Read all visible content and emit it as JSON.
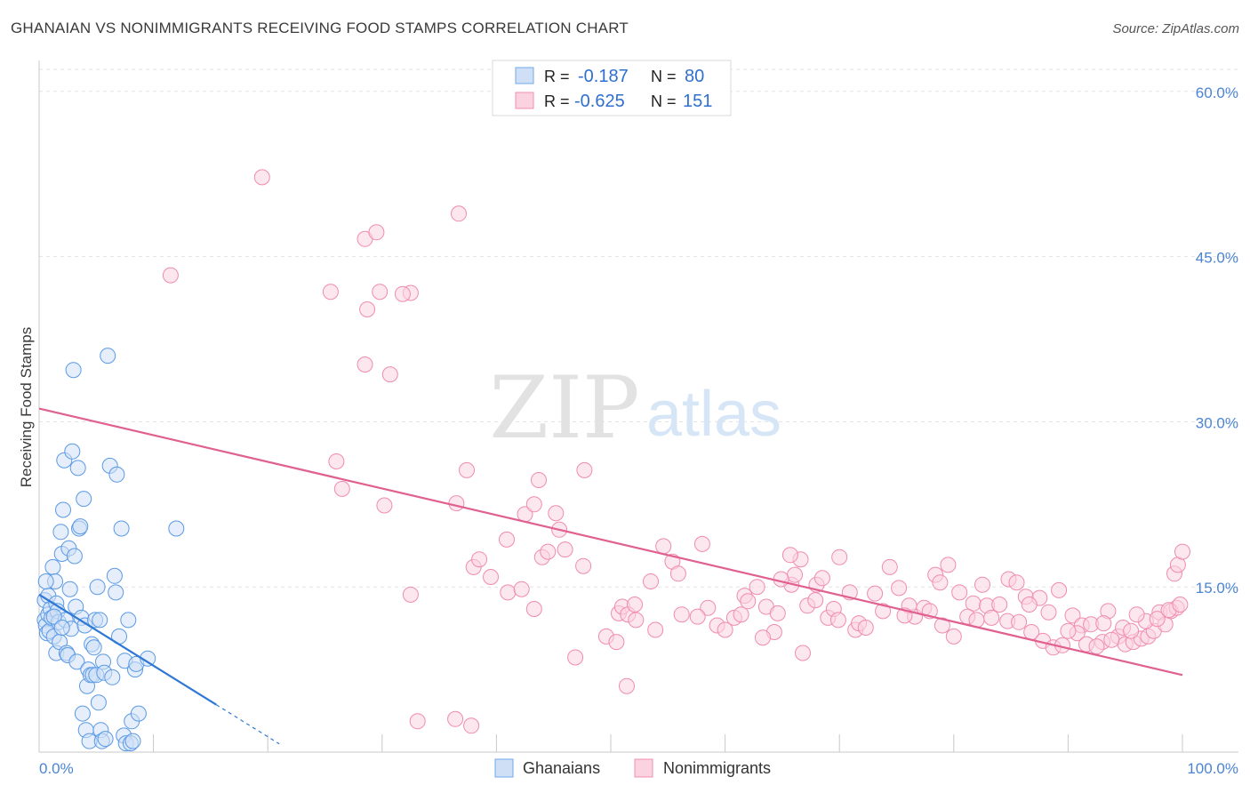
{
  "title": "GHANAIAN VS NONIMMIGRANTS RECEIVING FOOD STAMPS CORRELATION CHART",
  "source": "Source: ZipAtlas.com",
  "watermark": {
    "zip": "ZIP",
    "atlas": "atlas"
  },
  "colors": {
    "blue": "#6fa8e8",
    "blue_line": "#2f78d4",
    "pink": "#f28db0",
    "pink_line": "#e0608f",
    "tick_text": "#4a84d4"
  },
  "chart_data": {
    "type": "scatter",
    "ylabel": "Receiving Food Stamps",
    "x_tick_labels": [
      "0.0%",
      "100.0%"
    ],
    "y_tick_labels": [
      "15.0%",
      "30.0%",
      "45.0%",
      "60.0%"
    ],
    "y_ticks": [
      15,
      30,
      45,
      60
    ],
    "xlim": [
      0,
      100
    ],
    "ylim": [
      0,
      62
    ],
    "grid": true,
    "legend_top": [
      {
        "r_label": "R =",
        "r_value": "-0.187",
        "n_label": "N =",
        "n_value": "80"
      },
      {
        "r_label": "R =",
        "r_value": "-0.625",
        "n_label": "N =",
        "n_value": "151"
      }
    ],
    "series": [
      {
        "name": "Ghanaians",
        "color": "#6fa8e8",
        "trend": {
          "x0": 0,
          "y0": 14.3,
          "x1": 15.5,
          "y1": 4.3,
          "dashed_to_x": 21
        },
        "points": [
          [
            0.5,
            13.8
          ],
          [
            0.5,
            12.0
          ],
          [
            0.6,
            11.5
          ],
          [
            0.7,
            10.8
          ],
          [
            0.8,
            12.5
          ],
          [
            0.8,
            14.2
          ],
          [
            0.9,
            11.0
          ],
          [
            1.0,
            13.0
          ],
          [
            1.1,
            12.2
          ],
          [
            1.2,
            16.8
          ],
          [
            1.3,
            10.5
          ],
          [
            1.4,
            15.5
          ],
          [
            1.5,
            9.0
          ],
          [
            1.5,
            13.5
          ],
          [
            1.6,
            12.8
          ],
          [
            1.7,
            11.8
          ],
          [
            1.8,
            10.0
          ],
          [
            1.9,
            20.0
          ],
          [
            2.0,
            18.0
          ],
          [
            2.1,
            22.0
          ],
          [
            2.2,
            26.5
          ],
          [
            2.3,
            12.0
          ],
          [
            2.4,
            9.0
          ],
          [
            2.5,
            8.8
          ],
          [
            2.6,
            18.5
          ],
          [
            2.7,
            14.8
          ],
          [
            2.8,
            11.2
          ],
          [
            2.9,
            27.3
          ],
          [
            3.0,
            34.7
          ],
          [
            3.1,
            17.8
          ],
          [
            3.2,
            13.2
          ],
          [
            3.3,
            8.2
          ],
          [
            3.4,
            25.8
          ],
          [
            3.5,
            20.3
          ],
          [
            3.6,
            20.5
          ],
          [
            3.7,
            12.2
          ],
          [
            3.8,
            3.5
          ],
          [
            3.9,
            23.0
          ],
          [
            4.0,
            11.5
          ],
          [
            4.1,
            2.0
          ],
          [
            4.2,
            6.0
          ],
          [
            4.3,
            7.5
          ],
          [
            4.4,
            1.0
          ],
          [
            4.5,
            7.0
          ],
          [
            4.6,
            9.8
          ],
          [
            4.7,
            7.0
          ],
          [
            4.8,
            9.5
          ],
          [
            4.9,
            12.0
          ],
          [
            5.0,
            7.0
          ],
          [
            5.1,
            15.0
          ],
          [
            5.2,
            4.5
          ],
          [
            5.3,
            12.0
          ],
          [
            5.4,
            2.0
          ],
          [
            5.5,
            1.0
          ],
          [
            5.6,
            8.2
          ],
          [
            5.7,
            7.2
          ],
          [
            5.8,
            1.2
          ],
          [
            6.0,
            36.0
          ],
          [
            6.2,
            26.0
          ],
          [
            6.4,
            6.8
          ],
          [
            6.6,
            16.0
          ],
          [
            6.7,
            14.5
          ],
          [
            6.8,
            25.2
          ],
          [
            7.0,
            10.5
          ],
          [
            7.2,
            20.3
          ],
          [
            7.4,
            1.5
          ],
          [
            7.5,
            8.3
          ],
          [
            7.6,
            0.8
          ],
          [
            7.8,
            12.0
          ],
          [
            8.0,
            0.8
          ],
          [
            8.1,
            2.8
          ],
          [
            8.2,
            1.0
          ],
          [
            8.4,
            7.5
          ],
          [
            8.5,
            8.0
          ],
          [
            8.7,
            3.5
          ],
          [
            9.5,
            8.5
          ],
          [
            0.6,
            15.5
          ],
          [
            1.3,
            12.3
          ],
          [
            2.0,
            11.3
          ],
          [
            12.0,
            20.3
          ]
        ]
      },
      {
        "name": "Nonimmigrants",
        "color": "#f28db0",
        "trend": {
          "x0": 0,
          "y0": 31.2,
          "x1": 100,
          "y1": 7.0
        },
        "points": [
          [
            19.5,
            52.2
          ],
          [
            36.7,
            48.9
          ],
          [
            28.5,
            46.6
          ],
          [
            29.5,
            47.2
          ],
          [
            11.5,
            43.3
          ],
          [
            25.5,
            41.8
          ],
          [
            29.8,
            41.8
          ],
          [
            32.5,
            41.7
          ],
          [
            31.8,
            41.6
          ],
          [
            28.7,
            40.2
          ],
          [
            28.5,
            35.2
          ],
          [
            30.7,
            34.3
          ],
          [
            26.0,
            26.4
          ],
          [
            26.5,
            23.9
          ],
          [
            30.2,
            22.4
          ],
          [
            37.4,
            25.6
          ],
          [
            47.7,
            25.6
          ],
          [
            43.7,
            24.7
          ],
          [
            42.5,
            21.6
          ],
          [
            43.3,
            22.5
          ],
          [
            45.2,
            21.7
          ],
          [
            45.5,
            20.2
          ],
          [
            44.0,
            17.7
          ],
          [
            46.0,
            18.4
          ],
          [
            40.9,
            19.3
          ],
          [
            36.5,
            22.6
          ],
          [
            32.5,
            14.3
          ],
          [
            38.0,
            16.8
          ],
          [
            38.5,
            17.5
          ],
          [
            39.5,
            15.9
          ],
          [
            41.0,
            14.5
          ],
          [
            42.2,
            14.8
          ],
          [
            44.5,
            18.2
          ],
          [
            46.9,
            8.6
          ],
          [
            47.6,
            16.9
          ],
          [
            49.6,
            10.5
          ],
          [
            50.5,
            10.0
          ],
          [
            50.7,
            12.6
          ],
          [
            51.0,
            13.2
          ],
          [
            51.5,
            12.5
          ],
          [
            52.1,
            13.4
          ],
          [
            53.9,
            11.1
          ],
          [
            55.4,
            17.3
          ],
          [
            55.9,
            16.2
          ],
          [
            56.2,
            12.5
          ],
          [
            58.5,
            13.1
          ],
          [
            59.3,
            11.5
          ],
          [
            60.8,
            12.2
          ],
          [
            61.4,
            12.5
          ],
          [
            61.7,
            14.2
          ],
          [
            62.0,
            13.7
          ],
          [
            63.6,
            13.2
          ],
          [
            64.3,
            10.9
          ],
          [
            64.6,
            12.6
          ],
          [
            65.8,
            15.2
          ],
          [
            66.1,
            16.1
          ],
          [
            66.6,
            17.5
          ],
          [
            67.2,
            13.3
          ],
          [
            68.0,
            15.2
          ],
          [
            68.5,
            15.8
          ],
          [
            69.0,
            12.2
          ],
          [
            70.0,
            17.7
          ],
          [
            70.9,
            14.5
          ],
          [
            71.4,
            11.1
          ],
          [
            71.7,
            11.7
          ],
          [
            73.1,
            14.4
          ],
          [
            74.4,
            16.8
          ],
          [
            75.2,
            14.9
          ],
          [
            76.6,
            12.3
          ],
          [
            77.4,
            13.1
          ],
          [
            78.4,
            16.1
          ],
          [
            79.5,
            17.0
          ],
          [
            80.5,
            14.5
          ],
          [
            81.7,
            13.5
          ],
          [
            82.9,
            13.3
          ],
          [
            84.0,
            13.4
          ],
          [
            84.8,
            15.7
          ],
          [
            85.5,
            15.4
          ],
          [
            86.3,
            14.1
          ],
          [
            87.5,
            14.0
          ],
          [
            88.3,
            12.7
          ],
          [
            89.2,
            14.7
          ],
          [
            90.4,
            12.4
          ],
          [
            91.2,
            11.5
          ],
          [
            92.0,
            11.6
          ],
          [
            93.0,
            10.0
          ],
          [
            93.5,
            12.8
          ],
          [
            94.4,
            10.5
          ],
          [
            95.0,
            9.8
          ],
          [
            95.7,
            10.0
          ],
          [
            96.4,
            10.3
          ],
          [
            97.0,
            10.5
          ],
          [
            97.5,
            11.0
          ],
          [
            98.0,
            12.7
          ],
          [
            98.5,
            11.6
          ],
          [
            99.0,
            12.8
          ],
          [
            99.5,
            13.1
          ],
          [
            99.3,
            16.2
          ],
          [
            99.6,
            17.0
          ],
          [
            100.0,
            18.2
          ],
          [
            33.1,
            2.8
          ],
          [
            37.8,
            2.4
          ],
          [
            36.4,
            3.0
          ],
          [
            43.3,
            13.0
          ],
          [
            51.4,
            6.0
          ],
          [
            52.2,
            12.0
          ],
          [
            53.5,
            15.5
          ],
          [
            57.6,
            12.3
          ],
          [
            60.0,
            11.1
          ],
          [
            62.8,
            15.0
          ],
          [
            64.9,
            15.7
          ],
          [
            65.7,
            17.9
          ],
          [
            67.9,
            13.8
          ],
          [
            69.5,
            13.0
          ],
          [
            72.3,
            11.3
          ],
          [
            73.8,
            12.8
          ],
          [
            76.1,
            13.3
          ],
          [
            77.9,
            12.8
          ],
          [
            79.0,
            11.5
          ],
          [
            80.0,
            10.5
          ],
          [
            81.2,
            12.3
          ],
          [
            82.0,
            12.0
          ],
          [
            83.3,
            12.2
          ],
          [
            84.7,
            11.9
          ],
          [
            85.7,
            11.8
          ],
          [
            86.8,
            10.9
          ],
          [
            87.8,
            10.1
          ],
          [
            88.7,
            9.5
          ],
          [
            89.5,
            9.7
          ],
          [
            90.8,
            10.8
          ],
          [
            91.6,
            9.8
          ],
          [
            92.5,
            9.6
          ],
          [
            93.8,
            10.2
          ],
          [
            94.8,
            11.3
          ],
          [
            95.5,
            11.0
          ],
          [
            96.8,
            11.9
          ],
          [
            97.8,
            12.1
          ],
          [
            98.8,
            12.9
          ],
          [
            99.8,
            13.4
          ],
          [
            54.6,
            18.7
          ],
          [
            58.0,
            18.9
          ],
          [
            63.3,
            10.4
          ],
          [
            66.8,
            9.0
          ],
          [
            69.9,
            12.0
          ],
          [
            75.7,
            12.4
          ],
          [
            78.8,
            15.4
          ],
          [
            82.5,
            15.2
          ],
          [
            86.6,
            13.4
          ],
          [
            90.0,
            11.0
          ],
          [
            93.1,
            11.7
          ],
          [
            96.0,
            12.5
          ]
        ]
      }
    ]
  },
  "legend_bottom": [
    {
      "label": "Ghanaians"
    },
    {
      "label": "Nonimmigrants"
    }
  ]
}
